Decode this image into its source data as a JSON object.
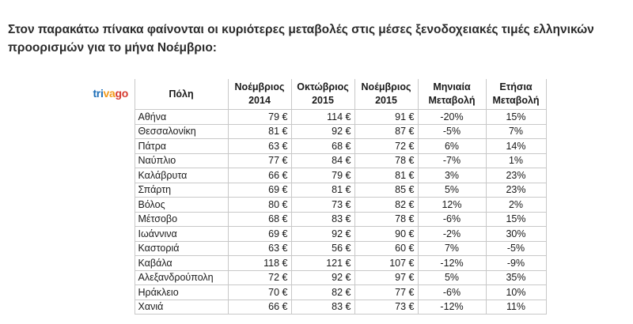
{
  "intro_text": "Στον παρακάτω πίνακα φαίνονται οι κυριότερες μεταβολές στις μέσες ξενοδοχειακές τιμές ελληνικών προορισμών για το μήνα Νοέμβριο:",
  "logo": {
    "part1": "tri",
    "part2": "va",
    "part3": "go",
    "colors": [
      "#1e6fb8",
      "#f29b1d",
      "#d63b30"
    ]
  },
  "table": {
    "headers": {
      "city": "Πόλη",
      "nov2014": [
        "Νοέμβριος",
        "2014"
      ],
      "oct2015": [
        "Οκτώβριος",
        "2015"
      ],
      "nov2015": [
        "Νοέμβριος",
        "2015"
      ],
      "monthly": [
        "Μηνιαία",
        "Μεταβολή"
      ],
      "yearly": [
        "Ετήσια",
        "Μεταβολή"
      ]
    },
    "rows": [
      {
        "city": "Αθήνα",
        "nov2014": "79 €",
        "oct2015": "114 €",
        "nov2015": "91 €",
        "monthly": "-20%",
        "yearly": "15%"
      },
      {
        "city": "Θεσσαλονίκη",
        "nov2014": "81 €",
        "oct2015": "92 €",
        "nov2015": "87 €",
        "monthly": "-5%",
        "yearly": "7%"
      },
      {
        "city": "Πάτρα",
        "nov2014": "63 €",
        "oct2015": "68 €",
        "nov2015": "72 €",
        "monthly": "6%",
        "yearly": "14%"
      },
      {
        "city": "Ναύπλιο",
        "nov2014": "77 €",
        "oct2015": "84 €",
        "nov2015": "78 €",
        "monthly": "-7%",
        "yearly": "1%"
      },
      {
        "city": "Καλάβρυτα",
        "nov2014": "66 €",
        "oct2015": "79 €",
        "nov2015": "81 €",
        "monthly": "3%",
        "yearly": "23%"
      },
      {
        "city": "Σπάρτη",
        "nov2014": "69 €",
        "oct2015": "81 €",
        "nov2015": "85 €",
        "monthly": "5%",
        "yearly": "23%"
      },
      {
        "city": "Βόλος",
        "nov2014": "80 €",
        "oct2015": "73 €",
        "nov2015": "82 €",
        "monthly": "12%",
        "yearly": "2%"
      },
      {
        "city": "Μέτσοβο",
        "nov2014": "68 €",
        "oct2015": "83 €",
        "nov2015": "78 €",
        "monthly": "-6%",
        "yearly": "15%"
      },
      {
        "city": "Ιωάννινα",
        "nov2014": "69 €",
        "oct2015": "92 €",
        "nov2015": "90 €",
        "monthly": "-2%",
        "yearly": "30%"
      },
      {
        "city": "Καστοριά",
        "nov2014": "63 €",
        "oct2015": "56 €",
        "nov2015": "60 €",
        "monthly": "7%",
        "yearly": "-5%"
      },
      {
        "city": "Καβάλα",
        "nov2014": "118 €",
        "oct2015": "121 €",
        "nov2015": "107 €",
        "monthly": "-12%",
        "yearly": "-9%"
      },
      {
        "city": "Αλεξανδρούπολη",
        "nov2014": "72 €",
        "oct2015": "92 €",
        "nov2015": "97 €",
        "monthly": "5%",
        "yearly": "35%"
      },
      {
        "city": "Ηράκλειο",
        "nov2014": "70 €",
        "oct2015": "82 €",
        "nov2015": "77 €",
        "monthly": "-6%",
        "yearly": "10%"
      },
      {
        "city": "Χανιά",
        "nov2014": "66 €",
        "oct2015": "83 €",
        "nov2015": "73 €",
        "monthly": "-12%",
        "yearly": "11%"
      }
    ]
  }
}
